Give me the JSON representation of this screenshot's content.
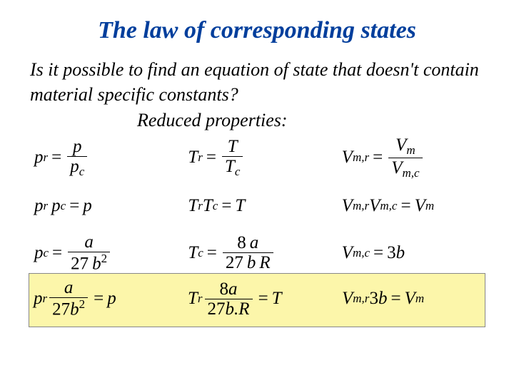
{
  "title": {
    "text": "The law of corresponding states",
    "color": "#003e9c"
  },
  "intro": "Is it possible to find an equation of state that doesn't contain material specific constants?",
  "subhead": "Reduced properties:",
  "highlight_bg": "#fcf6aa",
  "text_color": "#000000",
  "bg_color": "#ffffff"
}
